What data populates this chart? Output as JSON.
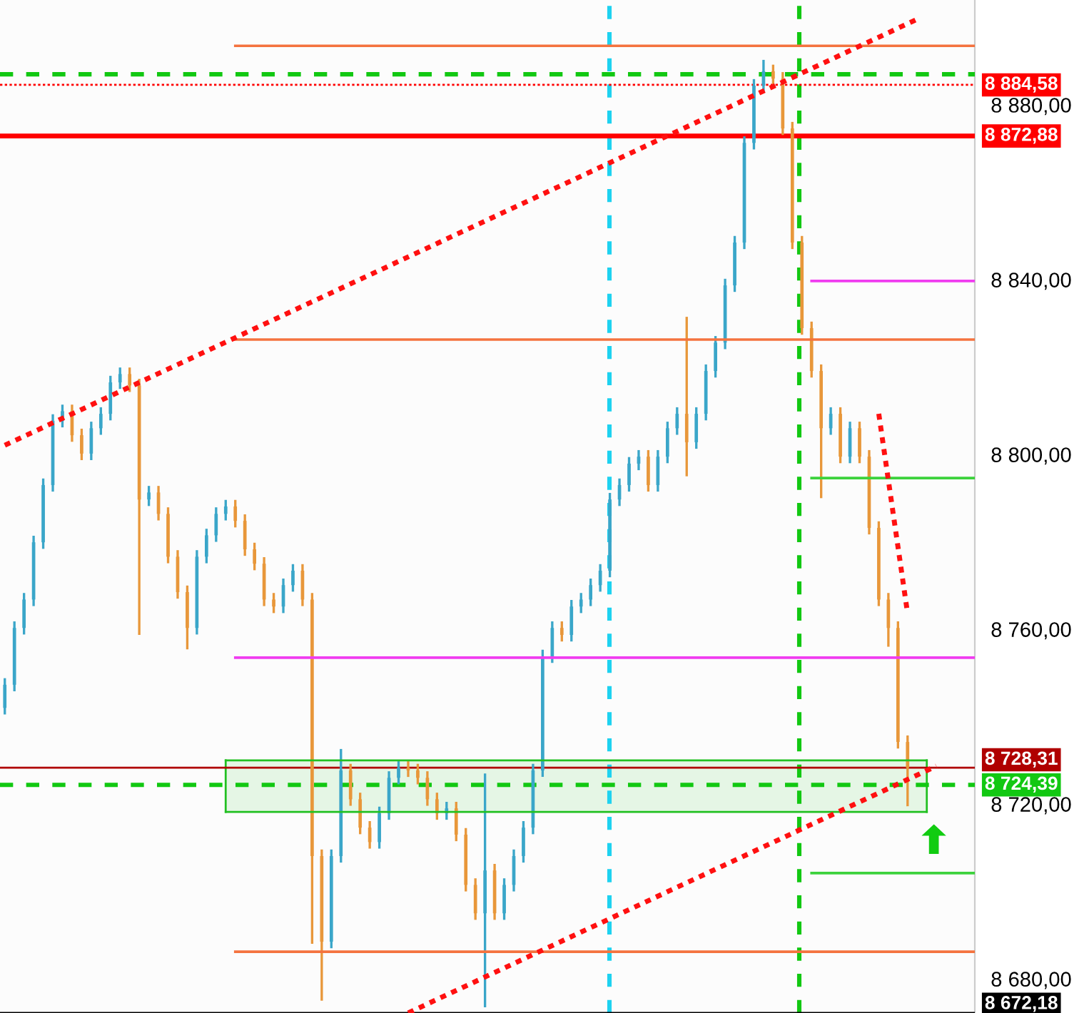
{
  "chart_data": {
    "type": "candlestick",
    "categories": [
      null,
      null,
      null,
      null,
      null,
      null,
      null,
      null,
      null,
      null,
      null,
      null,
      null,
      null,
      null,
      null,
      null,
      null,
      null,
      null,
      null,
      null,
      null,
      null,
      null,
      null,
      null,
      null,
      null,
      null,
      null,
      null,
      null,
      null,
      null,
      null,
      null,
      null,
      null,
      null,
      null,
      null,
      null,
      null,
      null,
      null,
      null,
      null,
      null,
      null,
      null,
      null,
      null,
      null,
      null,
      null,
      null,
      null,
      null,
      null,
      null,
      null,
      null,
      null,
      null,
      null,
      null,
      null,
      null,
      null,
      null,
      null,
      null,
      null,
      null,
      null,
      null,
      null,
      null,
      null,
      null,
      null,
      null,
      null,
      null,
      null,
      null,
      null,
      null,
      null,
      null,
      null,
      null,
      null,
      null,
      null,
      null,
      null,
      null,
      null,
      null,
      null
    ],
    "colors": [
      "#3aa6c9",
      "#3aa6c9",
      "#3aa6c9",
      "#3aa6c9",
      "#3aa6c9",
      "#3aa6c9",
      "#3aa6c9",
      "#e8973a",
      "#e8973a",
      "#3aa6c9",
      "#3aa6c9",
      "#3aa6c9",
      "#3aa6c9",
      "#e8973a",
      "#e8973a",
      "#3aa6c9",
      "#e8973a",
      "#e8973a",
      "#e8973a",
      "#e8973a",
      "#3aa6c9",
      "#3aa6c9",
      "#3aa6c9",
      "#3aa6c9",
      "#e8973a",
      "#e8973a",
      "#e8973a",
      "#e8973a",
      "#e8973a",
      "#3aa6c9",
      "#3aa6c9",
      "#e8973a",
      "#e8973a",
      "#e8973a",
      "#3aa6c9",
      "#3aa6c9",
      "#e8973a",
      "#e8973a",
      "#e8973a",
      "#3aa6c9",
      "#3aa6c9",
      "#3aa6c9",
      "#e8973a",
      "#e8973a",
      "#e8973a",
      "#e8973a",
      "#3aa6c9",
      "#e8973a",
      "#e8973a",
      "#e8973a",
      "#3aa6c9",
      "#e8973a",
      "#3aa6c9",
      "#3aa6c9",
      "#3aa6c9",
      "#3aa6c9",
      "#3aa6c9",
      "#3aa6c9",
      "#e8973a",
      "#3aa6c9",
      "#3aa6c9",
      "#3aa6c9",
      "#3aa6c9",
      "#3aa6c9",
      "#3aa6c9",
      "#3aa6c9",
      "#3aa6c9",
      "#e8973a",
      "#3aa6c9",
      "#3aa6c9",
      "#3aa6c9",
      "#e8973a",
      "#3aa6c9",
      "#3aa6c9",
      "#3aa6c9",
      "#3aa6c9",
      "#3aa6c9",
      "#3aa6c9",
      "#3aa6c9",
      "#3aa6c9",
      "#e8973a",
      "#e8973a",
      "#e8973a",
      "#e8973a",
      "#e8973a",
      "#e8973a",
      "#3aa6c9",
      "#e8973a",
      "#3aa6c9",
      "#e8973a",
      "#e8973a",
      "#e8973a",
      "#e8973a",
      "#e8973a",
      "#e8973a",
      null,
      null,
      null,
      null,
      null,
      null,
      null
    ],
    "ohlc": [
      [
        8742.0,
        8748.8,
        8740.5,
        8747.3
      ],
      [
        8747.3,
        8761.8,
        8745.8,
        8760.3
      ],
      [
        8760.3,
        8768.3,
        8758.8,
        8766.8
      ],
      [
        8766.8,
        8781.4,
        8765.3,
        8779.9
      ],
      [
        8779.9,
        8794.5,
        8778.4,
        8793.0
      ],
      [
        8793.0,
        8809.2,
        8791.5,
        8807.7
      ],
      [
        8807.7,
        8811.4,
        8806.2,
        8809.9
      ],
      [
        8809.9,
        8811.4,
        8802.9,
        8804.4
      ],
      [
        8804.4,
        8805.9,
        8798.7,
        8800.2
      ],
      [
        8800.2,
        8807.5,
        8798.7,
        8806.0
      ],
      [
        8806.0,
        8810.8,
        8804.5,
        8809.3
      ],
      [
        8809.3,
        8818.0,
        8807.8,
        8816.5
      ],
      [
        8816.5,
        8819.9,
        8815.0,
        8818.4
      ],
      [
        8818.4,
        8819.9,
        8814.3,
        8815.8
      ],
      [
        8815.8,
        8817.3,
        8758.7,
        8789.7
      ],
      [
        8789.7,
        8792.8,
        8788.2,
        8791.3
      ],
      [
        8791.3,
        8792.8,
        8784.9,
        8786.4
      ],
      [
        8786.4,
        8787.9,
        8775.1,
        8776.6
      ],
      [
        8776.6,
        8778.1,
        8767.0,
        8768.5
      ],
      [
        8768.5,
        8770.0,
        8755.4,
        8760.3
      ],
      [
        8760.3,
        8778.1,
        8758.8,
        8776.6
      ],
      [
        8776.6,
        8783.0,
        8775.1,
        8781.5
      ],
      [
        8781.5,
        8787.9,
        8780.0,
        8786.4
      ],
      [
        8786.4,
        8789.6,
        8784.9,
        8788.1
      ],
      [
        8788.1,
        8789.6,
        8783.3,
        8784.8
      ],
      [
        8784.8,
        8786.3,
        8776.8,
        8778.3
      ],
      [
        8778.3,
        8779.8,
        8773.5,
        8775.0
      ],
      [
        8775.0,
        8776.5,
        8765.3,
        8766.8
      ],
      [
        8766.8,
        8768.3,
        8763.7,
        8765.2
      ],
      [
        8765.2,
        8771.6,
        8763.7,
        8770.1
      ],
      [
        8770.1,
        8774.9,
        8768.6,
        8773.4
      ],
      [
        8773.4,
        8774.9,
        8765.3,
        8766.8
      ],
      [
        8766.8,
        8768.3,
        8688.0,
        8708.1
      ],
      [
        8708.1,
        8709.6,
        8675.0,
        8688.5
      ],
      [
        8688.5,
        8709.6,
        8687.0,
        8708.1
      ],
      [
        8708.1,
        8732.6,
        8706.6,
        8727.7
      ],
      [
        8727.7,
        8729.2,
        8719.6,
        8721.1
      ],
      [
        8721.1,
        8722.6,
        8713.1,
        8714.6
      ],
      [
        8714.6,
        8716.1,
        8709.8,
        8711.3
      ],
      [
        8711.3,
        8719.4,
        8709.8,
        8717.9
      ],
      [
        8717.9,
        8727.5,
        8716.4,
        8726.0
      ],
      [
        8726.0,
        8729.8,
        8724.5,
        8728.3
      ],
      [
        8728.3,
        8729.8,
        8726.2,
        8727.7
      ],
      [
        8727.7,
        8729.2,
        8724.5,
        8726.0
      ],
      [
        8726.0,
        8727.5,
        8719.6,
        8721.1
      ],
      [
        8721.1,
        8722.6,
        8716.4,
        8717.9
      ],
      [
        8717.9,
        8720.5,
        8716.4,
        8719.0
      ],
      [
        8719.0,
        8720.5,
        8711.5,
        8713.0
      ],
      [
        8713.0,
        8714.5,
        8700.0,
        8701.5
      ],
      [
        8701.5,
        8703.0,
        8693.5,
        8695.0
      ],
      [
        8695.0,
        8727.0,
        8673.5,
        8704.8
      ],
      [
        8704.8,
        8706.3,
        8693.5,
        8695.0
      ],
      [
        8695.0,
        8703.0,
        8693.5,
        8701.5
      ],
      [
        8701.5,
        8709.6,
        8700.0,
        8708.1
      ],
      [
        8708.1,
        8716.1,
        8706.6,
        8714.6
      ],
      [
        8714.6,
        8729.2,
        8713.1,
        8727.7
      ],
      [
        8727.7,
        8755.3,
        8726.2,
        8753.8
      ],
      [
        8753.8,
        8761.8,
        8752.3,
        8760.3
      ],
      [
        8760.3,
        8761.8,
        8757.2,
        8758.7
      ],
      [
        8758.7,
        8766.7,
        8757.2,
        8765.2
      ],
      [
        8765.2,
        8768.3,
        8763.7,
        8766.8
      ],
      [
        8766.8,
        8771.6,
        8765.3,
        8770.1
      ],
      [
        8770.1,
        8774.9,
        8768.6,
        8773.4
      ],
      [
        8773.4,
        8791.2,
        8771.9,
        8789.7
      ],
      [
        8789.7,
        8794.5,
        8788.2,
        8793.0
      ],
      [
        8793.0,
        8799.4,
        8791.5,
        8797.9
      ],
      [
        8797.9,
        8801.0,
        8796.4,
        8799.5
      ],
      [
        8799.5,
        8801.0,
        8791.5,
        8793.0
      ],
      [
        8793.0,
        8801.0,
        8791.5,
        8799.5
      ],
      [
        8799.5,
        8807.5,
        8798.0,
        8806.0
      ],
      [
        8806.0,
        8810.8,
        8804.5,
        8809.3
      ],
      [
        8809.3,
        8831.5,
        8795.0,
        8802.8
      ],
      [
        8802.8,
        8810.8,
        8801.3,
        8809.3
      ],
      [
        8809.3,
        8820.6,
        8807.8,
        8819.1
      ],
      [
        8819.1,
        8827.1,
        8817.6,
        8825.6
      ],
      [
        8825.6,
        8840.2,
        8824.1,
        8838.7
      ],
      [
        8838.7,
        8850.0,
        8837.2,
        8848.5
      ],
      [
        8848.5,
        8872.8,
        8847.0,
        8871.3
      ],
      [
        8871.3,
        8885.9,
        8869.8,
        8884.4
      ],
      [
        8884.4,
        8890.3,
        8882.9,
        8887.7
      ],
      [
        8887.7,
        8889.2,
        8884.5,
        8886.0
      ],
      [
        8886.0,
        8887.5,
        8873.1,
        8874.6
      ],
      [
        8874.6,
        8876.1,
        8847.0,
        8848.5
      ],
      [
        8848.5,
        8850.0,
        8827.4,
        8828.9
      ],
      [
        8828.9,
        8830.4,
        8817.6,
        8819.1
      ],
      [
        8819.1,
        8820.6,
        8790.0,
        8806.0
      ],
      [
        8806.0,
        8810.8,
        8804.5,
        8809.3
      ],
      [
        8809.3,
        8810.8,
        8798.0,
        8799.5
      ],
      [
        8799.5,
        8807.5,
        8798.0,
        8806.0
      ],
      [
        8806.0,
        8807.5,
        8798.0,
        8799.5
      ],
      [
        8799.5,
        8801.0,
        8781.7,
        8783.2
      ],
      [
        8783.2,
        8784.7,
        8765.3,
        8766.8
      ],
      [
        8766.8,
        8768.3,
        8756.0,
        8760.3
      ],
      [
        8760.3,
        8761.8,
        8732.7,
        8734.2
      ],
      [
        8734.2,
        8735.7,
        8719.5,
        8728.3
      ],
      null,
      null,
      null,
      null,
      null,
      null,
      null
    ],
    "series": [
      {
        "type": "line",
        "color": "#22c022",
        "line_style": "solid",
        "values": [
          null,
          null,
          null,
          null,
          null,
          null,
          null,
          null,
          null,
          null,
          null,
          null,
          null,
          null,
          null,
          null,
          null,
          null,
          null,
          null,
          null,
          null,
          null,
          8730.0,
          null,
          null,
          null,
          null,
          null,
          null,
          null,
          null,
          null,
          null,
          null,
          null,
          null,
          null,
          null,
          null,
          null,
          null,
          null,
          null,
          null,
          null,
          null,
          null,
          null,
          null,
          null,
          null,
          null,
          null,
          null,
          null,
          null,
          null,
          null,
          null,
          null,
          null,
          null,
          null,
          null,
          null,
          null,
          null,
          null,
          null,
          null,
          null,
          null,
          null,
          null,
          null,
          null,
          null,
          null,
          null,
          null,
          null,
          null,
          null,
          null,
          null,
          null,
          null,
          null,
          null,
          null,
          null,
          null,
          null,
          null,
          null,
          8730.0,
          null,
          null,
          null,
          null,
          null
        ]
      },
      {
        "type": "line",
        "color": "#22c022",
        "line_style": "solid",
        "values": [
          null,
          null,
          null,
          null,
          null,
          null,
          null,
          null,
          null,
          null,
          null,
          null,
          null,
          null,
          null,
          null,
          null,
          null,
          null,
          null,
          null,
          null,
          null,
          8718.2,
          null,
          null,
          null,
          null,
          null,
          null,
          null,
          null,
          null,
          null,
          null,
          null,
          null,
          null,
          null,
          null,
          null,
          null,
          null,
          null,
          null,
          null,
          null,
          null,
          null,
          null,
          null,
          null,
          null,
          null,
          null,
          null,
          null,
          null,
          null,
          null,
          null,
          null,
          null,
          null,
          null,
          null,
          null,
          null,
          null,
          null,
          null,
          null,
          null,
          null,
          null,
          null,
          null,
          null,
          null,
          null,
          null,
          null,
          null,
          null,
          null,
          null,
          null,
          null,
          null,
          null,
          null,
          null,
          null,
          null,
          null,
          null,
          8718.2,
          null,
          null,
          null,
          null,
          null
        ]
      },
      {
        "type": "line",
        "color": "#f4733f",
        "line_style": "solid",
        "values": [
          null,
          null,
          null,
          null,
          null,
          null,
          null,
          null,
          null,
          null,
          null,
          null,
          null,
          null,
          null,
          null,
          null,
          null,
          null,
          null,
          null,
          null,
          null,
          null,
          8893.5,
          null,
          null,
          null,
          null,
          null,
          null,
          null,
          null,
          null,
          null,
          null,
          null,
          null,
          null,
          null,
          null,
          null,
          null,
          null,
          null,
          null,
          null,
          null,
          null,
          null,
          null,
          null,
          null,
          null,
          null,
          null,
          null,
          null,
          null,
          null,
          null,
          null,
          null,
          null,
          null,
          null,
          null,
          null,
          null,
          null,
          null,
          null,
          null,
          null,
          null,
          null,
          null,
          null,
          null,
          null,
          null,
          null,
          null,
          null,
          null,
          null,
          null,
          null,
          null,
          null,
          null,
          null,
          null,
          null,
          null,
          null,
          null,
          null,
          null,
          null,
          null,
          8893.5
        ]
      },
      {
        "type": "line",
        "color": "#f4733f",
        "line_style": "solid",
        "values": [
          null,
          null,
          null,
          null,
          null,
          null,
          null,
          null,
          null,
          null,
          null,
          null,
          null,
          null,
          null,
          null,
          null,
          null,
          null,
          null,
          null,
          null,
          null,
          null,
          8826.3,
          null,
          null,
          null,
          null,
          null,
          null,
          null,
          null,
          null,
          null,
          null,
          null,
          null,
          null,
          null,
          null,
          null,
          null,
          null,
          null,
          null,
          null,
          null,
          null,
          null,
          null,
          null,
          null,
          null,
          null,
          null,
          null,
          null,
          null,
          null,
          null,
          null,
          null,
          null,
          null,
          null,
          null,
          null,
          null,
          null,
          null,
          null,
          null,
          null,
          null,
          null,
          null,
          null,
          null,
          null,
          null,
          null,
          null,
          null,
          null,
          null,
          null,
          null,
          null,
          null,
          null,
          null,
          null,
          null,
          null,
          null,
          null,
          null,
          null,
          null,
          null,
          8826.3
        ]
      },
      {
        "type": "line",
        "color": "#f4733f",
        "line_style": "solid",
        "values": [
          null,
          null,
          null,
          null,
          null,
          null,
          null,
          null,
          null,
          null,
          null,
          null,
          null,
          null,
          null,
          null,
          null,
          null,
          null,
          null,
          null,
          null,
          null,
          null,
          8686.2,
          null,
          null,
          null,
          null,
          null,
          null,
          null,
          null,
          null,
          null,
          null,
          null,
          null,
          null,
          null,
          null,
          null,
          null,
          null,
          null,
          null,
          null,
          null,
          null,
          null,
          null,
          null,
          null,
          null,
          null,
          null,
          null,
          null,
          null,
          null,
          null,
          null,
          null,
          null,
          null,
          null,
          null,
          null,
          null,
          null,
          null,
          null,
          null,
          null,
          null,
          null,
          null,
          null,
          null,
          null,
          null,
          null,
          null,
          null,
          null,
          null,
          null,
          null,
          null,
          null,
          null,
          null,
          null,
          null,
          null,
          null,
          null,
          null,
          null,
          null,
          null,
          8686.2
        ]
      },
      {
        "type": "line",
        "color": "#f03cf0",
        "line_style": "solid",
        "values": [
          null,
          null,
          null,
          null,
          null,
          null,
          null,
          null,
          null,
          null,
          null,
          null,
          null,
          null,
          null,
          null,
          null,
          null,
          null,
          null,
          null,
          null,
          null,
          null,
          null,
          null,
          null,
          null,
          null,
          null,
          null,
          null,
          null,
          null,
          null,
          null,
          null,
          null,
          null,
          null,
          null,
          null,
          null,
          null,
          null,
          null,
          null,
          null,
          null,
          null,
          null,
          null,
          null,
          null,
          null,
          null,
          null,
          null,
          null,
          null,
          null,
          null,
          null,
          null,
          null,
          null,
          null,
          null,
          null,
          null,
          null,
          null,
          null,
          null,
          null,
          null,
          null,
          null,
          null,
          null,
          null,
          null,
          null,
          null,
          8839.7,
          null,
          null,
          null,
          null,
          null,
          null,
          null,
          null,
          null,
          null,
          null,
          null,
          null,
          null,
          null,
          null,
          8839.7
        ]
      },
      {
        "type": "line",
        "color": "#f03cf0",
        "line_style": "solid",
        "values": [
          null,
          null,
          null,
          null,
          null,
          null,
          null,
          null,
          null,
          null,
          null,
          null,
          null,
          null,
          null,
          null,
          null,
          null,
          null,
          null,
          null,
          null,
          null,
          null,
          8753.5,
          null,
          null,
          null,
          null,
          null,
          null,
          null,
          null,
          null,
          null,
          null,
          null,
          null,
          null,
          null,
          null,
          null,
          null,
          null,
          null,
          null,
          null,
          null,
          null,
          null,
          null,
          null,
          null,
          null,
          null,
          null,
          null,
          null,
          null,
          null,
          null,
          null,
          null,
          null,
          null,
          null,
          null,
          null,
          null,
          null,
          null,
          null,
          null,
          null,
          null,
          null,
          null,
          null,
          null,
          null,
          null,
          null,
          null,
          null,
          null,
          null,
          null,
          null,
          null,
          null,
          null,
          null,
          null,
          null,
          null,
          null,
          null,
          null,
          null,
          null,
          null,
          8753.5
        ]
      },
      {
        "type": "line",
        "color": "#3cd23c",
        "line_style": "solid",
        "values": [
          null,
          null,
          null,
          null,
          null,
          null,
          null,
          null,
          null,
          null,
          null,
          null,
          null,
          null,
          null,
          null,
          null,
          null,
          null,
          null,
          null,
          null,
          null,
          null,
          null,
          null,
          null,
          null,
          null,
          null,
          null,
          null,
          null,
          null,
          null,
          null,
          null,
          null,
          null,
          null,
          null,
          null,
          null,
          null,
          null,
          null,
          null,
          null,
          null,
          null,
          null,
          null,
          null,
          null,
          null,
          null,
          null,
          null,
          null,
          null,
          null,
          null,
          null,
          null,
          null,
          null,
          null,
          null,
          null,
          null,
          null,
          null,
          null,
          null,
          null,
          null,
          null,
          null,
          null,
          null,
          null,
          null,
          null,
          null,
          8794.6,
          null,
          null,
          null,
          null,
          null,
          null,
          null,
          null,
          null,
          null,
          null,
          null,
          null,
          null,
          null,
          null,
          8794.6
        ]
      },
      {
        "type": "line",
        "color": "#3cd23c",
        "line_style": "solid",
        "values": [
          null,
          null,
          null,
          null,
          null,
          null,
          null,
          null,
          null,
          null,
          null,
          null,
          null,
          null,
          null,
          null,
          null,
          null,
          null,
          null,
          null,
          null,
          null,
          null,
          null,
          null,
          null,
          null,
          null,
          null,
          null,
          null,
          null,
          null,
          null,
          null,
          null,
          null,
          null,
          null,
          null,
          null,
          null,
          null,
          null,
          null,
          null,
          null,
          null,
          null,
          null,
          null,
          null,
          null,
          null,
          null,
          null,
          null,
          null,
          null,
          null,
          null,
          null,
          null,
          null,
          null,
          null,
          null,
          null,
          null,
          null,
          null,
          null,
          null,
          null,
          null,
          null,
          null,
          null,
          null,
          null,
          null,
          null,
          null,
          8704.2,
          null,
          null,
          null,
          null,
          null,
          null,
          null,
          null,
          null,
          null,
          null,
          null,
          null,
          null,
          null,
          null,
          8704.2
        ]
      },
      {
        "type": "line",
        "color": "#ff1010",
        "line_style": "dotted",
        "values": [
          8802.1,
          null,
          null,
          null,
          null,
          null,
          null,
          null,
          null,
          null,
          null,
          null,
          null,
          null,
          null,
          null,
          null,
          null,
          null,
          null,
          null,
          null,
          null,
          null,
          null,
          null,
          null,
          null,
          null,
          null,
          null,
          null,
          null,
          null,
          null,
          null,
          null,
          null,
          null,
          null,
          null,
          null,
          null,
          null,
          null,
          null,
          null,
          null,
          null,
          null,
          null,
          null,
          null,
          null,
          null,
          null,
          null,
          null,
          null,
          null,
          null,
          null,
          null,
          null,
          null,
          null,
          null,
          null,
          null,
          null,
          null,
          null,
          null,
          null,
          null,
          null,
          null,
          null,
          null,
          null,
          null,
          null,
          null,
          null,
          null,
          null,
          null,
          null,
          null,
          null,
          null,
          null,
          null,
          null,
          null,
          8899.6,
          null,
          null,
          null,
          null,
          null,
          null
        ]
      },
      {
        "type": "line",
        "color": "#ff1010",
        "line_style": "dotted",
        "values": [
          null,
          null,
          null,
          null,
          null,
          null,
          null,
          null,
          null,
          null,
          null,
          null,
          null,
          null,
          null,
          null,
          null,
          null,
          null,
          null,
          null,
          null,
          null,
          null,
          null,
          null,
          null,
          null,
          null,
          null,
          null,
          null,
          null,
          null,
          null,
          null,
          null,
          null,
          null,
          null,
          null,
          null,
          8672.2,
          null,
          null,
          null,
          null,
          null,
          null,
          null,
          null,
          null,
          null,
          null,
          null,
          null,
          null,
          null,
          null,
          null,
          null,
          null,
          null,
          null,
          null,
          null,
          null,
          null,
          null,
          null,
          null,
          null,
          null,
          null,
          null,
          null,
          null,
          null,
          null,
          null,
          null,
          null,
          null,
          null,
          null,
          null,
          null,
          null,
          null,
          null,
          null,
          null,
          null,
          null,
          null,
          null,
          null,
          8728.7,
          null,
          null,
          null,
          null
        ]
      },
      {
        "type": "line",
        "color": "#ff1010",
        "line_style": "dotted",
        "values": [
          null,
          null,
          null,
          null,
          null,
          null,
          null,
          null,
          null,
          null,
          null,
          null,
          null,
          null,
          null,
          null,
          null,
          null,
          null,
          null,
          null,
          null,
          null,
          null,
          null,
          null,
          null,
          null,
          null,
          null,
          null,
          null,
          null,
          null,
          null,
          null,
          null,
          null,
          null,
          null,
          null,
          null,
          null,
          null,
          null,
          null,
          null,
          null,
          null,
          null,
          null,
          null,
          null,
          null,
          null,
          null,
          null,
          null,
          null,
          null,
          null,
          null,
          null,
          null,
          null,
          null,
          null,
          null,
          null,
          null,
          null,
          null,
          null,
          null,
          null,
          null,
          null,
          null,
          null,
          null,
          null,
          null,
          null,
          null,
          null,
          null,
          null,
          null,
          null,
          null,
          null,
          8809.3,
          null,
          null,
          8763.6,
          null,
          null,
          null,
          null,
          null,
          null,
          null
        ]
      }
    ],
    "ref_lines": [
      {
        "axis": "y",
        "value": 8887.0,
        "color": "#12c812",
        "line_style": "dashed"
      },
      {
        "axis": "y",
        "value": 8884.58,
        "label": "8 884,58",
        "color": "#ff0000",
        "line_style": "dotted"
      },
      {
        "axis": "y",
        "value": 8872.88,
        "label": "8 872,88",
        "color": "#ff0000",
        "line_style": "solid"
      },
      {
        "axis": "y",
        "value": 8728.31,
        "label": "8 728,31",
        "color": "#b00000",
        "line_style": "solid"
      },
      {
        "axis": "y",
        "value": 8724.39,
        "label": "8 724,39",
        "color": "#12c812",
        "line_style": "dashed"
      },
      {
        "axis": "y",
        "value": 8672.18,
        "label": "8 672,18",
        "color": "#000000",
        "line_style": "solid"
      }
    ],
    "ylim": [
      8672.18,
      8904.0
    ],
    "yticks": [
      {
        "value": 8680,
        "label": "8 680,00"
      },
      {
        "value": 8720,
        "label": "8 720,00"
      },
      {
        "value": 8760,
        "label": "8 760,00"
      },
      {
        "value": 8800,
        "label": "8 800,00"
      },
      {
        "value": 8840,
        "label": "8 840,00"
      },
      {
        "value": 8880,
        "label": "8 880,00"
      }
    ],
    "tick_labels": "y",
    "grid": false,
    "legend": false
  }
}
